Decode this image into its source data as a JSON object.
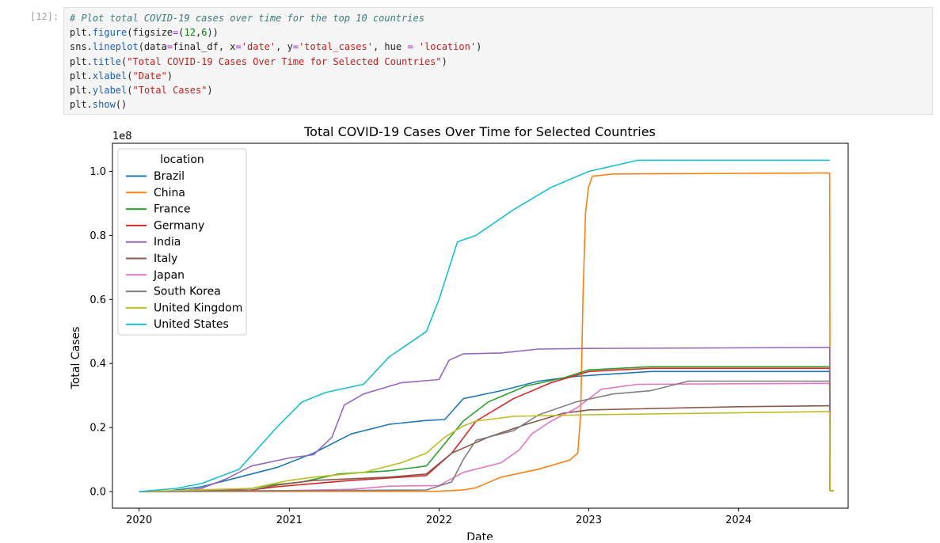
{
  "cell": {
    "prompt": "[12]:",
    "code_lines": [
      [
        {
          "t": "# Plot total COVID-19 cases over time for the top 10 countries",
          "c": "comment"
        }
      ],
      [
        {
          "t": "plt."
        },
        {
          "t": "figure",
          "c": "func"
        },
        {
          "t": "(figsize"
        },
        {
          "t": "=",
          "c": "op"
        },
        {
          "t": "("
        },
        {
          "t": "12",
          "c": "num"
        },
        {
          "t": ","
        },
        {
          "t": "6",
          "c": "num"
        },
        {
          "t": "))"
        }
      ],
      [
        {
          "t": "sns."
        },
        {
          "t": "lineplot",
          "c": "func"
        },
        {
          "t": "(data"
        },
        {
          "t": "=",
          "c": "op"
        },
        {
          "t": "final_df, x"
        },
        {
          "t": "=",
          "c": "op"
        },
        {
          "t": "'date'",
          "c": "str"
        },
        {
          "t": ", y"
        },
        {
          "t": "=",
          "c": "op"
        },
        {
          "t": "'total_cases'",
          "c": "str"
        },
        {
          "t": ", hue "
        },
        {
          "t": "=",
          "c": "op"
        },
        {
          "t": " "
        },
        {
          "t": "'location'",
          "c": "str"
        },
        {
          "t": ")"
        }
      ],
      [
        {
          "t": "plt."
        },
        {
          "t": "title",
          "c": "func"
        },
        {
          "t": "("
        },
        {
          "t": "\"Total COVID-19 Cases Over Time for Selected Countries\"",
          "c": "str"
        },
        {
          "t": ")"
        }
      ],
      [
        {
          "t": "plt."
        },
        {
          "t": "xlabel",
          "c": "func"
        },
        {
          "t": "("
        },
        {
          "t": "\"Date\"",
          "c": "str"
        },
        {
          "t": ")"
        }
      ],
      [
        {
          "t": "plt."
        },
        {
          "t": "ylabel",
          "c": "func"
        },
        {
          "t": "("
        },
        {
          "t": "\"Total Cases\"",
          "c": "str"
        },
        {
          "t": ")"
        }
      ],
      [
        {
          "t": "plt."
        },
        {
          "t": "show",
          "c": "func"
        },
        {
          "t": "()"
        }
      ]
    ]
  },
  "chart_data": {
    "type": "line",
    "title": "Total COVID-19 Cases Over Time for Selected Countries",
    "xlabel": "Date",
    "ylabel": "Total Cases",
    "y_offset_label": "1e8",
    "y_scale": 100000000,
    "xlim": [
      "2019-10-28",
      "2024-09-24"
    ],
    "ylim": [
      -0.0518,
      1.0878
    ],
    "x_ticks": [
      "2020-01-01",
      "2021-01-01",
      "2022-01-01",
      "2023-01-01",
      "2024-01-01"
    ],
    "x_tick_labels": [
      "2020",
      "2021",
      "2022",
      "2023",
      "2024"
    ],
    "y_ticks": [
      0.0,
      0.2,
      0.4,
      0.6,
      0.8,
      1.0
    ],
    "y_tick_labels": [
      "0.0",
      "0.2",
      "0.4",
      "0.6",
      "0.8",
      "1.0"
    ],
    "grid": false,
    "legend": {
      "title": "location",
      "placement": "upper-left"
    },
    "series": [
      {
        "name": "Brazil",
        "color": "#1f77b4",
        "points": [
          [
            "2020-01-01",
            0
          ],
          [
            "2020-03-01",
            0
          ],
          [
            "2020-06-01",
            0.015
          ],
          [
            "2020-09-01",
            0.045
          ],
          [
            "2020-12-01",
            0.075
          ],
          [
            "2021-03-01",
            0.12
          ],
          [
            "2021-06-01",
            0.18
          ],
          [
            "2021-09-01",
            0.21
          ],
          [
            "2021-12-01",
            0.222
          ],
          [
            "2022-01-15",
            0.225
          ],
          [
            "2022-03-01",
            0.29
          ],
          [
            "2022-06-01",
            0.315
          ],
          [
            "2022-09-01",
            0.345
          ],
          [
            "2022-12-01",
            0.36
          ],
          [
            "2023-06-01",
            0.375
          ],
          [
            "2024-08-10",
            0.375
          ],
          [
            "2024-08-11",
            0.002
          ],
          [
            "2024-08-20",
            0.002
          ]
        ]
      },
      {
        "name": "China",
        "color": "#ff7f0e",
        "points": [
          [
            "2020-01-01",
            0
          ],
          [
            "2022-01-01",
            0.001
          ],
          [
            "2022-03-01",
            0.005
          ],
          [
            "2022-04-01",
            0.012
          ],
          [
            "2022-06-01",
            0.045
          ],
          [
            "2022-09-01",
            0.07
          ],
          [
            "2022-11-15",
            0.098
          ],
          [
            "2022-12-05",
            0.12
          ],
          [
            "2022-12-12",
            0.24
          ],
          [
            "2022-12-18",
            0.62
          ],
          [
            "2022-12-24",
            0.87
          ],
          [
            "2022-12-31",
            0.95
          ],
          [
            "2023-01-10",
            0.985
          ],
          [
            "2023-03-01",
            0.992
          ],
          [
            "2024-08-10",
            0.995
          ],
          [
            "2024-08-11",
            0.002
          ],
          [
            "2024-08-20",
            0.002
          ]
        ]
      },
      {
        "name": "France",
        "color": "#2ca02c",
        "points": [
          [
            "2020-01-01",
            0
          ],
          [
            "2020-06-01",
            0.003
          ],
          [
            "2020-10-01",
            0.01
          ],
          [
            "2020-11-15",
            0.02
          ],
          [
            "2021-02-01",
            0.03
          ],
          [
            "2021-05-01",
            0.055
          ],
          [
            "2021-09-01",
            0.065
          ],
          [
            "2021-12-01",
            0.08
          ],
          [
            "2022-01-15",
            0.15
          ],
          [
            "2022-03-01",
            0.22
          ],
          [
            "2022-05-01",
            0.28
          ],
          [
            "2022-08-01",
            0.33
          ],
          [
            "2022-11-01",
            0.355
          ],
          [
            "2023-01-01",
            0.38
          ],
          [
            "2023-06-01",
            0.39
          ],
          [
            "2024-08-10",
            0.39
          ],
          [
            "2024-08-11",
            0.002
          ],
          [
            "2024-08-20",
            0.002
          ]
        ]
      },
      {
        "name": "Germany",
        "color": "#d62728",
        "points": [
          [
            "2020-01-01",
            0
          ],
          [
            "2020-10-01",
            0.005
          ],
          [
            "2020-12-01",
            0.015
          ],
          [
            "2021-03-01",
            0.025
          ],
          [
            "2021-06-01",
            0.035
          ],
          [
            "2021-12-01",
            0.05
          ],
          [
            "2022-02-01",
            0.12
          ],
          [
            "2022-04-01",
            0.22
          ],
          [
            "2022-07-01",
            0.29
          ],
          [
            "2022-10-01",
            0.34
          ],
          [
            "2023-01-01",
            0.375
          ],
          [
            "2023-06-01",
            0.385
          ],
          [
            "2024-08-10",
            0.385
          ],
          [
            "2024-08-11",
            0.002
          ],
          [
            "2024-08-20",
            0.002
          ]
        ]
      },
      {
        "name": "India",
        "color": "#9467bd",
        "points": [
          [
            "2020-01-01",
            0
          ],
          [
            "2020-04-01",
            0
          ],
          [
            "2020-06-01",
            0.01
          ],
          [
            "2020-08-01",
            0.04
          ],
          [
            "2020-10-01",
            0.08
          ],
          [
            "2021-01-01",
            0.105
          ],
          [
            "2021-03-01",
            0.115
          ],
          [
            "2021-04-15",
            0.17
          ],
          [
            "2021-05-15",
            0.27
          ],
          [
            "2021-07-01",
            0.305
          ],
          [
            "2021-10-01",
            0.34
          ],
          [
            "2022-01-01",
            0.35
          ],
          [
            "2022-01-25",
            0.41
          ],
          [
            "2022-03-01",
            0.43
          ],
          [
            "2022-06-01",
            0.433
          ],
          [
            "2022-09-01",
            0.445
          ],
          [
            "2023-01-01",
            0.447
          ],
          [
            "2024-08-10",
            0.45
          ],
          [
            "2024-08-11",
            0.002
          ],
          [
            "2024-08-20",
            0.002
          ]
        ]
      },
      {
        "name": "Italy",
        "color": "#8c564b",
        "points": [
          [
            "2020-01-01",
            0
          ],
          [
            "2020-10-01",
            0.004
          ],
          [
            "2020-12-01",
            0.02
          ],
          [
            "2021-03-01",
            0.035
          ],
          [
            "2021-09-01",
            0.045
          ],
          [
            "2021-12-01",
            0.055
          ],
          [
            "2022-02-01",
            0.12
          ],
          [
            "2022-05-01",
            0.17
          ],
          [
            "2022-08-01",
            0.21
          ],
          [
            "2022-11-01",
            0.245
          ],
          [
            "2023-01-01",
            0.255
          ],
          [
            "2024-01-01",
            0.265
          ],
          [
            "2024-08-10",
            0.268
          ],
          [
            "2024-08-11",
            0.002
          ],
          [
            "2024-08-20",
            0.002
          ]
        ]
      },
      {
        "name": "Japan",
        "color": "#e377c2",
        "points": [
          [
            "2020-01-01",
            0
          ],
          [
            "2021-01-01",
            0.003
          ],
          [
            "2021-06-01",
            0.007
          ],
          [
            "2021-09-01",
            0.017
          ],
          [
            "2022-01-01",
            0.019
          ],
          [
            "2022-03-01",
            0.06
          ],
          [
            "2022-06-01",
            0.09
          ],
          [
            "2022-07-15",
            0.13
          ],
          [
            "2022-08-15",
            0.18
          ],
          [
            "2022-10-01",
            0.22
          ],
          [
            "2022-12-01",
            0.26
          ],
          [
            "2023-02-01",
            0.32
          ],
          [
            "2023-05-01",
            0.335
          ],
          [
            "2024-08-10",
            0.338
          ],
          [
            "2024-08-11",
            0.002
          ],
          [
            "2024-08-20",
            0.002
          ]
        ]
      },
      {
        "name": "South Korea",
        "color": "#7f7f7f",
        "points": [
          [
            "2020-01-01",
            0
          ],
          [
            "2021-12-01",
            0.005
          ],
          [
            "2022-02-01",
            0.03
          ],
          [
            "2022-03-01",
            0.1
          ],
          [
            "2022-04-01",
            0.16
          ],
          [
            "2022-07-01",
            0.19
          ],
          [
            "2022-09-01",
            0.24
          ],
          [
            "2022-12-01",
            0.28
          ],
          [
            "2023-03-01",
            0.305
          ],
          [
            "2023-06-01",
            0.315
          ],
          [
            "2023-09-01",
            0.345
          ],
          [
            "2024-08-10",
            0.345
          ],
          [
            "2024-08-11",
            0.002
          ],
          [
            "2024-08-20",
            0.002
          ]
        ]
      },
      {
        "name": "United Kingdom",
        "color": "#bcbd22",
        "points": [
          [
            "2020-01-01",
            0
          ],
          [
            "2020-10-01",
            0.01
          ],
          [
            "2021-01-01",
            0.035
          ],
          [
            "2021-03-01",
            0.045
          ],
          [
            "2021-07-01",
            0.06
          ],
          [
            "2021-10-01",
            0.09
          ],
          [
            "2021-12-01",
            0.12
          ],
          [
            "2022-01-15",
            0.17
          ],
          [
            "2022-03-01",
            0.205
          ],
          [
            "2022-04-01",
            0.22
          ],
          [
            "2022-07-01",
            0.235
          ],
          [
            "2023-01-01",
            0.24
          ],
          [
            "2024-08-10",
            0.25
          ],
          [
            "2024-08-11",
            0.002
          ],
          [
            "2024-08-20",
            0.002
          ]
        ]
      },
      {
        "name": "United States",
        "color": "#17becf",
        "points": [
          [
            "2020-01-01",
            0
          ],
          [
            "2020-04-01",
            0.01
          ],
          [
            "2020-06-01",
            0.025
          ],
          [
            "2020-09-01",
            0.07
          ],
          [
            "2020-12-01",
            0.2
          ],
          [
            "2021-02-01",
            0.28
          ],
          [
            "2021-04-01",
            0.31
          ],
          [
            "2021-07-01",
            0.335
          ],
          [
            "2021-09-01",
            0.42
          ],
          [
            "2021-12-01",
            0.5
          ],
          [
            "2022-01-01",
            0.6
          ],
          [
            "2022-02-15",
            0.78
          ],
          [
            "2022-04-01",
            0.8
          ],
          [
            "2022-07-01",
            0.88
          ],
          [
            "2022-10-01",
            0.95
          ],
          [
            "2023-01-01",
            1.0
          ],
          [
            "2023-05-01",
            1.035
          ],
          [
            "2024-08-10",
            1.035
          ]
        ]
      }
    ]
  }
}
